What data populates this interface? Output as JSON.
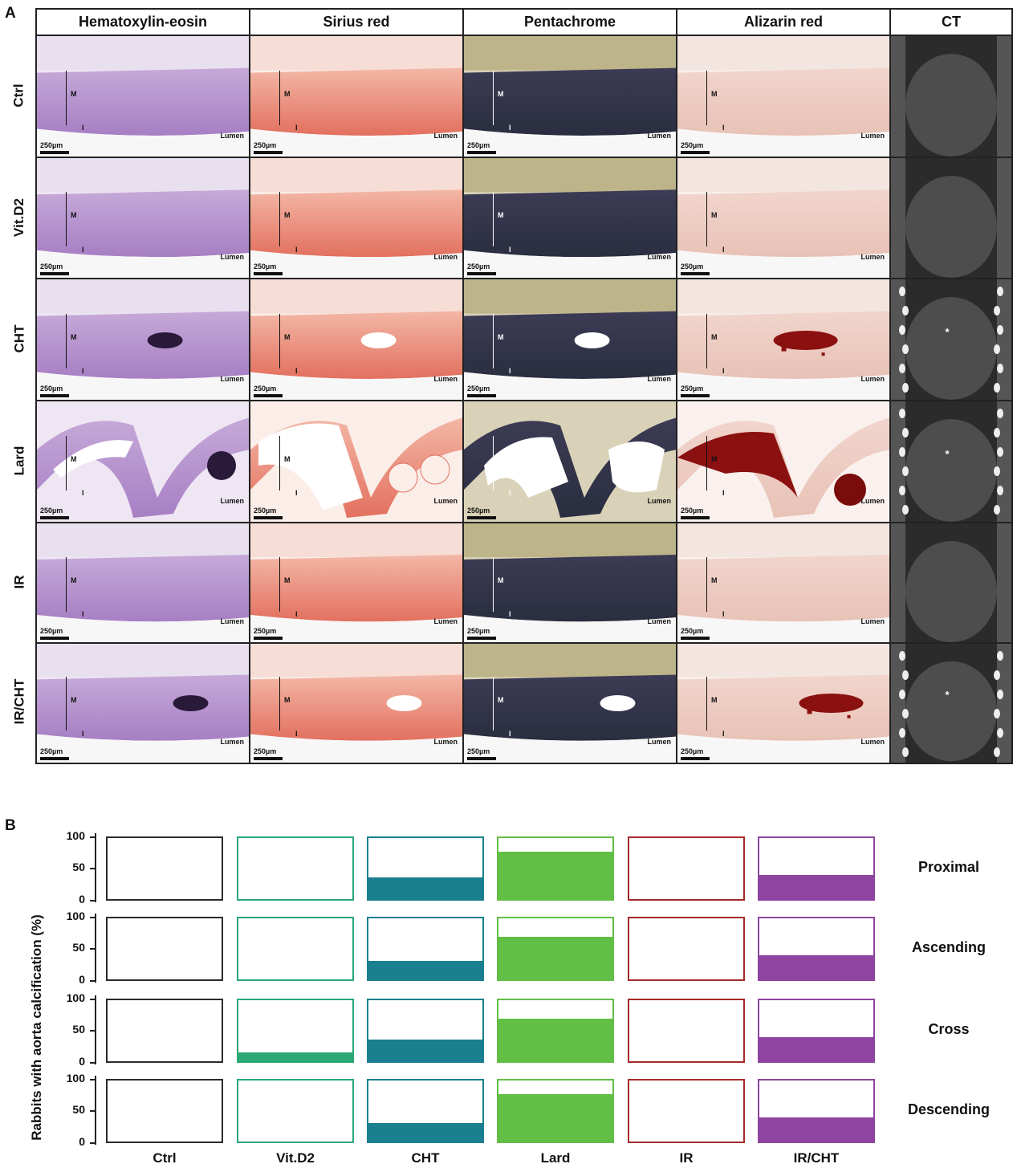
{
  "panelA": {
    "letter": "A",
    "columns": [
      "Hematoxylin-eosin",
      "Sirius red",
      "Pentachrome",
      "Alizarin red",
      "CT"
    ],
    "rows": [
      "Ctrl",
      "Vit.D2",
      "CHT",
      "Lard",
      "IR",
      "IR/CHT"
    ],
    "labels": {
      "media": "M",
      "intima": "I",
      "lumen": "Lumen",
      "scale": "250µm",
      "asterisk": "*"
    }
  },
  "panelB": {
    "letter": "B"
  },
  "chart_data": {
    "type": "bar",
    "ylabel": "Rabbits with aorta calcification (%)",
    "ylim": [
      0,
      100
    ],
    "yticks": [
      "100",
      "50",
      "0"
    ],
    "categories": [
      "Ctrl",
      "Vit.D2",
      "CHT",
      "Lard",
      "IR",
      "IR/CHT"
    ],
    "category_colors": [
      "#2b2b2b",
      "#2aa876",
      "#1a7f8e",
      "#62bf45",
      "#a52a2a",
      "#8e44a0"
    ],
    "series": [
      {
        "name": "Proximal",
        "values": [
          0,
          0,
          35,
          77,
          0,
          40
        ]
      },
      {
        "name": "Ascending",
        "values": [
          0,
          0,
          30,
          70,
          0,
          40
        ]
      },
      {
        "name": "Cross",
        "values": [
          0,
          15,
          35,
          70,
          0,
          40
        ]
      },
      {
        "name": "Descending",
        "values": [
          0,
          0,
          30,
          78,
          0,
          40
        ]
      }
    ]
  }
}
